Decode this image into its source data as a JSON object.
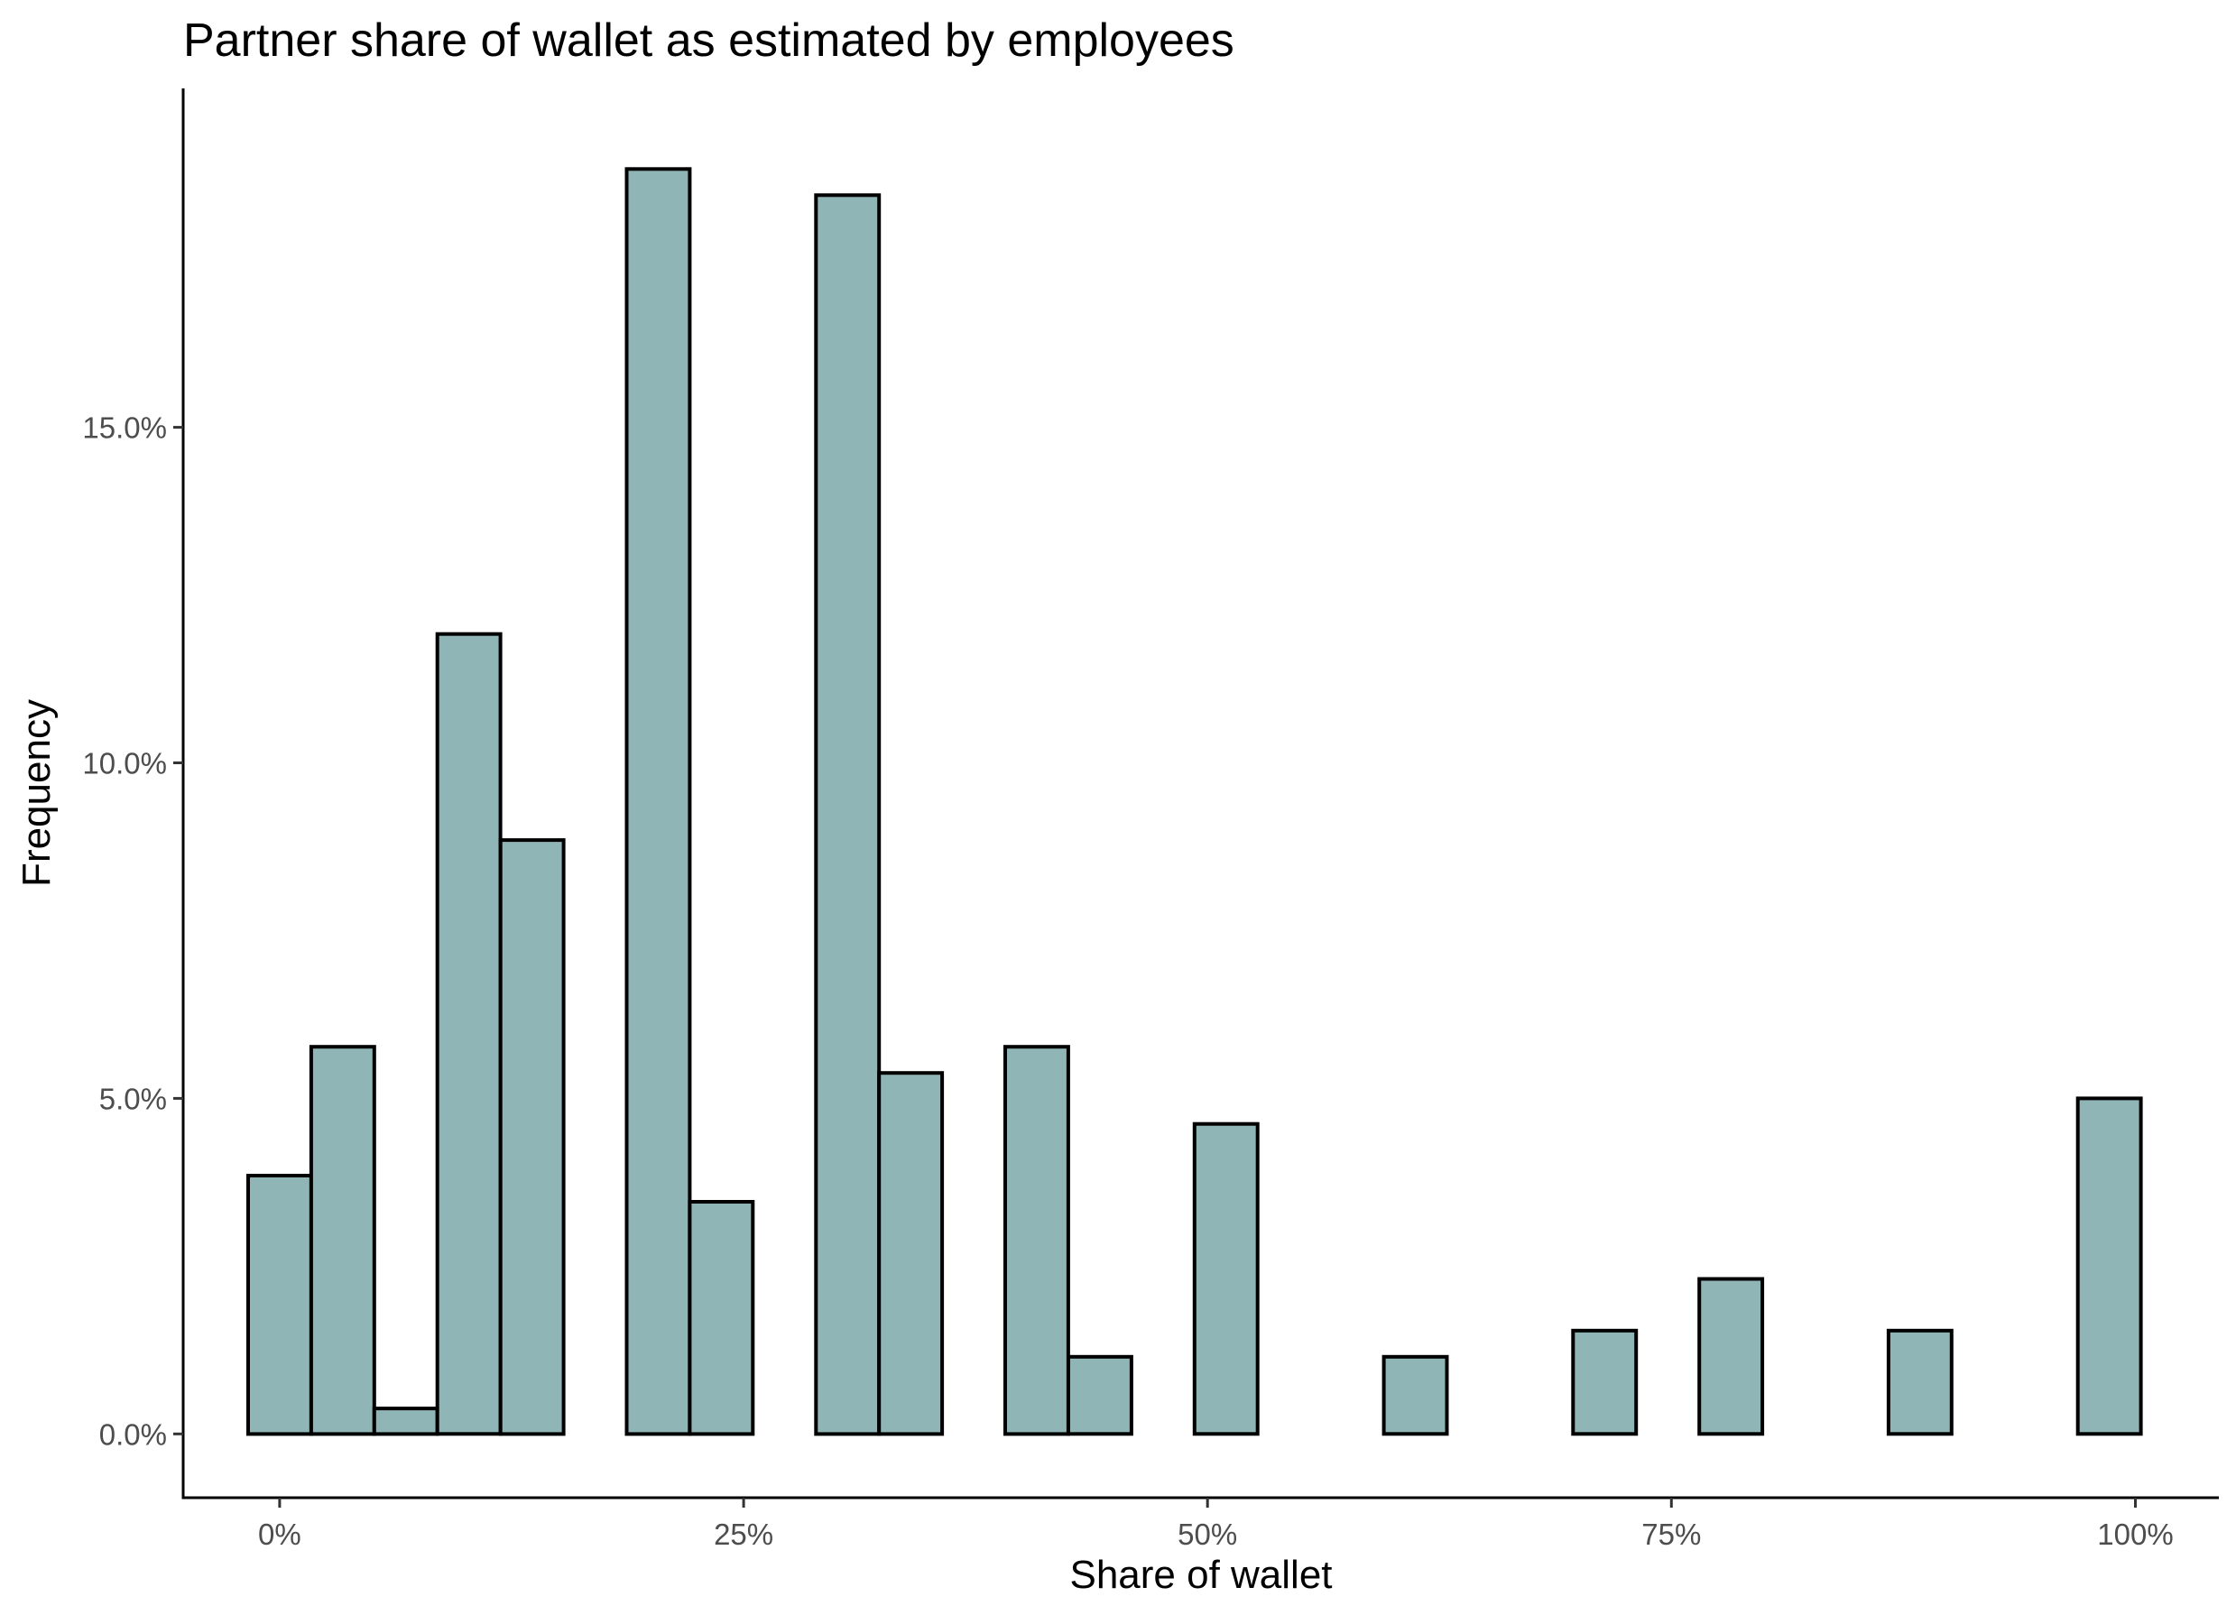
{
  "chart_data": {
    "type": "bar",
    "title": "Partner share of wallet as estimated by employees",
    "xlabel": "Share of wallet",
    "ylabel": "Frequency",
    "x_ticks": [
      {
        "value": 0,
        "label": "0%"
      },
      {
        "value": 25,
        "label": "25%"
      },
      {
        "value": 50,
        "label": "50%"
      },
      {
        "value": 75,
        "label": "75%"
      },
      {
        "value": 100,
        "label": "100%"
      }
    ],
    "y_ticks": [
      {
        "value": 0,
        "label": "0.0%"
      },
      {
        "value": 5,
        "label": "5.0%"
      },
      {
        "value": 10,
        "label": "10.0%"
      },
      {
        "value": 15,
        "label": "15.0%"
      }
    ],
    "xlim": [
      -5.2,
      104.5
    ],
    "ylim": [
      -0.95,
      20.05
    ],
    "bin_width": 3.4,
    "bins": [
      {
        "x_start": -1.7,
        "x_end": 1.7,
        "value": 3.85
      },
      {
        "x_start": 1.7,
        "x_end": 5.1,
        "value": 5.77
      },
      {
        "x_start": 5.1,
        "x_end": 8.5,
        "value": 0.38
      },
      {
        "x_start": 8.5,
        "x_end": 11.9,
        "value": 11.92
      },
      {
        "x_start": 11.9,
        "x_end": 15.3,
        "value": 8.85
      },
      {
        "x_start": 15.3,
        "x_end": 18.7,
        "value": 0
      },
      {
        "x_start": 18.7,
        "x_end": 22.1,
        "value": 18.85
      },
      {
        "x_start": 22.1,
        "x_end": 25.5,
        "value": 3.46
      },
      {
        "x_start": 25.5,
        "x_end": 28.9,
        "value": 0
      },
      {
        "x_start": 28.9,
        "x_end": 32.3,
        "value": 18.46
      },
      {
        "x_start": 32.3,
        "x_end": 35.7,
        "value": 5.38
      },
      {
        "x_start": 35.7,
        "x_end": 39.1,
        "value": 0
      },
      {
        "x_start": 39.1,
        "x_end": 42.5,
        "value": 5.77
      },
      {
        "x_start": 42.5,
        "x_end": 45.9,
        "value": 1.15
      },
      {
        "x_start": 45.9,
        "x_end": 49.3,
        "value": 0
      },
      {
        "x_start": 49.3,
        "x_end": 52.7,
        "value": 4.62
      },
      {
        "x_start": 52.7,
        "x_end": 56.1,
        "value": 0
      },
      {
        "x_start": 56.1,
        "x_end": 59.5,
        "value": 0
      },
      {
        "x_start": 59.5,
        "x_end": 62.9,
        "value": 1.15
      },
      {
        "x_start": 62.9,
        "x_end": 66.3,
        "value": 0
      },
      {
        "x_start": 66.3,
        "x_end": 69.7,
        "value": 0
      },
      {
        "x_start": 69.7,
        "x_end": 73.1,
        "value": 1.54
      },
      {
        "x_start": 73.1,
        "x_end": 76.5,
        "value": 0
      },
      {
        "x_start": 76.5,
        "x_end": 79.9,
        "value": 2.31
      },
      {
        "x_start": 79.9,
        "x_end": 83.3,
        "value": 0
      },
      {
        "x_start": 83.3,
        "x_end": 86.7,
        "value": 0
      },
      {
        "x_start": 86.7,
        "x_end": 90.1,
        "value": 1.54
      },
      {
        "x_start": 90.1,
        "x_end": 93.5,
        "value": 0
      },
      {
        "x_start": 93.5,
        "x_end": 96.9,
        "value": 0
      },
      {
        "x_start": 96.9,
        "x_end": 100.3,
        "value": 5.0
      }
    ],
    "bar_fill": "#8fb5b7",
    "bar_outline": "#000000",
    "grid": false,
    "legend": "none"
  }
}
